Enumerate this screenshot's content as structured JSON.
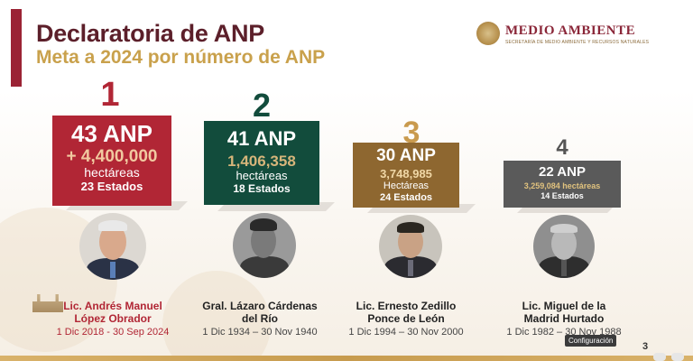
{
  "slide": {
    "title": "Declaratoria de ANP",
    "subtitle": "Meta a 2024 por número de ANP",
    "logo": {
      "name": "MEDIO AMBIENTE",
      "tagline": "SECRETARÍA DE MEDIO AMBIENTE Y RECURSOS NATURALES"
    },
    "page_number": "3",
    "tooltip": "Configuración"
  },
  "entries": [
    {
      "rank": "1",
      "anp": "43 ANP",
      "hectares": "+ 4,400,000",
      "hectares_label": "hectáreas",
      "states": "23 Estados",
      "name_line1": "Lic. Andrés Manuel",
      "name_line2": "López Obrador",
      "dates": "1 Dic 2018 - 30 Sep 2024",
      "card_color": "#b12635",
      "rank_color": "#b12635",
      "name_color": "#b12635"
    },
    {
      "rank": "2",
      "anp": "41 ANP",
      "hectares": "1,406,358",
      "hectares_label": "hectáreas",
      "states": "18 Estados",
      "name_line1": "Gral. Lázaro Cárdenas",
      "name_line2": "del Río",
      "dates": "1 Dic 1934 – 30 Nov 1940",
      "card_color": "#124c3c",
      "rank_color": "#124c3c",
      "name_color": "#222222"
    },
    {
      "rank": "3",
      "anp": "30 ANP",
      "hectares": "3,748,985",
      "hectares_label": "Hectáreas",
      "states": "24 Estados",
      "name_line1": "Lic. Ernesto Zedillo",
      "name_line2": "Ponce de León",
      "dates": "1 Dic 1994 – 30 Nov 2000",
      "card_color": "#8e6730",
      "rank_color": "#c99a4e",
      "name_color": "#222222"
    },
    {
      "rank": "4",
      "anp": "22 ANP",
      "hectares": "3,259,084 hectáreas",
      "hectares_label": "",
      "states": "14 Estados",
      "name_line1": "Lic. Miguel de la",
      "name_line2": "Madrid Hurtado",
      "dates": "1 Dic 1982 – 30 Nov 1988",
      "card_color": "#5a5a5a",
      "rank_color": "#555555",
      "name_color": "#222222"
    }
  ]
}
